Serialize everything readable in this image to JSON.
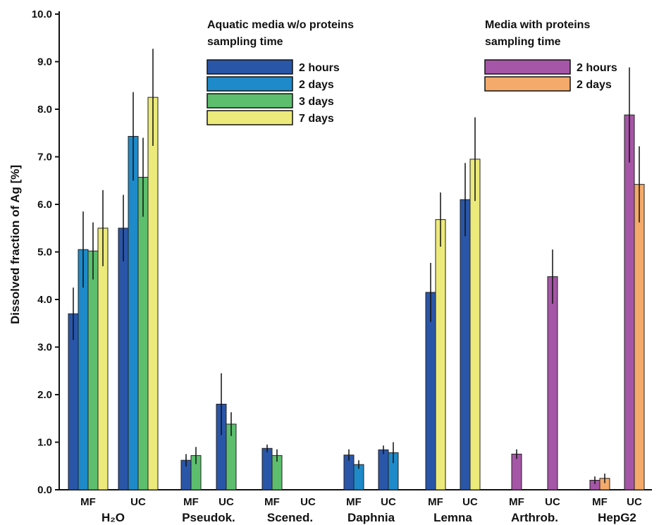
{
  "chart_data": {
    "type": "bar",
    "ylabel": "Dissolved fraction of Ag [%]",
    "ylim": [
      0,
      10
    ],
    "yticks": [
      "0.0",
      "1.0",
      "2.0",
      "3.0",
      "4.0",
      "5.0",
      "6.0",
      "7.0",
      "8.0",
      "9.0",
      "10.0"
    ],
    "colors": {
      "2 hours": "#2a56a8",
      "2 days": "#1e8ac9",
      "3 days": "#5dbf6e",
      "7 days": "#ecea7a",
      "2 hours (proteins)": "#a556a6",
      "2 days (proteins)": "#f4aa6a"
    },
    "legends": [
      {
        "title_lines": [
          "Aquatic media w/o proteins",
          "sampling time"
        ],
        "entries": [
          {
            "label": "2 hours",
            "color_key": "2 hours"
          },
          {
            "label": "2 days",
            "color_key": "2 days"
          },
          {
            "label": "3 days",
            "color_key": "3 days"
          },
          {
            "label": "7 days",
            "color_key": "7 days"
          }
        ]
      },
      {
        "title_lines": [
          "Media with proteins",
          "sampling time"
        ],
        "entries": [
          {
            "label": "2 hours",
            "color_key": "2 hours (proteins)"
          },
          {
            "label": "2 days",
            "color_key": "2 days (proteins)"
          }
        ]
      }
    ],
    "groups": [
      {
        "label": "H₂O",
        "subgroups": [
          {
            "label": "MF",
            "bars": [
              {
                "series": "2 hours",
                "value": 3.7,
                "error": 0.55
              },
              {
                "series": "2 days",
                "value": 5.05,
                "error": 0.8
              },
              {
                "series": "3 days",
                "value": 5.02,
                "error": 0.6
              },
              {
                "series": "7 days",
                "value": 5.5,
                "error": 0.8
              }
            ]
          },
          {
            "label": "UC",
            "bars": [
              {
                "series": "2 hours",
                "value": 5.5,
                "error": 0.7
              },
              {
                "series": "2 days",
                "value": 7.43,
                "error": 0.93
              },
              {
                "series": "3 days",
                "value": 6.57,
                "error": 0.83
              },
              {
                "series": "7 days",
                "value": 8.25,
                "error": 1.02
              }
            ]
          }
        ]
      },
      {
        "label": "Pseudok.",
        "subgroups": [
          {
            "label": "MF",
            "bars": [
              {
                "series": "2 hours",
                "value": 0.62,
                "error": 0.13
              },
              {
                "series": "3 days",
                "value": 0.72,
                "error": 0.18
              }
            ]
          },
          {
            "label": "UC",
            "bars": [
              {
                "series": "2 hours",
                "value": 1.8,
                "error": 0.65
              },
              {
                "series": "3 days",
                "value": 1.38,
                "error": 0.25
              }
            ]
          }
        ]
      },
      {
        "label": "Scened.",
        "subgroups": [
          {
            "label": "MF",
            "bars": [
              {
                "series": "2 hours",
                "value": 0.87,
                "error": 0.08
              },
              {
                "series": "3 days",
                "value": 0.72,
                "error": 0.13
              }
            ]
          },
          {
            "label": "UC",
            "bars": []
          }
        ]
      },
      {
        "label": "Daphnia",
        "subgroups": [
          {
            "label": "MF",
            "bars": [
              {
                "series": "2 hours",
                "value": 0.73,
                "error": 0.12
              },
              {
                "series": "2 days",
                "value": 0.53,
                "error": 0.09
              }
            ]
          },
          {
            "label": "UC",
            "bars": [
              {
                "series": "2 hours",
                "value": 0.84,
                "error": 0.09
              },
              {
                "series": "2 days",
                "value": 0.78,
                "error": 0.22
              }
            ]
          }
        ]
      },
      {
        "label": "Lemna",
        "subgroups": [
          {
            "label": "MF",
            "bars": [
              {
                "series": "2 hours",
                "value": 4.15,
                "error": 0.62
              },
              {
                "series": "7 days",
                "value": 5.68,
                "error": 0.57
              }
            ]
          },
          {
            "label": "UC",
            "bars": [
              {
                "series": "2 hours",
                "value": 6.1,
                "error": 0.77
              },
              {
                "series": "7 days",
                "value": 6.95,
                "error": 0.88
              }
            ]
          }
        ]
      },
      {
        "label": "Arthrob.",
        "subgroups": [
          {
            "label": "MF",
            "bars": [
              {
                "series": "2 hours (proteins)",
                "value": 0.75,
                "error": 0.1
              }
            ]
          },
          {
            "label": "UC",
            "bars": [
              {
                "series": "2 hours (proteins)",
                "value": 4.48,
                "error": 0.57
              }
            ]
          }
        ]
      },
      {
        "label": "HepG2",
        "subgroups": [
          {
            "label": "MF",
            "bars": [
              {
                "series": "2 hours (proteins)",
                "value": 0.2,
                "error": 0.08
              },
              {
                "series": "2 days (proteins)",
                "value": 0.24,
                "error": 0.1
              }
            ]
          },
          {
            "label": "UC",
            "bars": [
              {
                "series": "2 hours (proteins)",
                "value": 7.88,
                "error": 1.0
              },
              {
                "series": "2 days (proteins)",
                "value": 6.42,
                "error": 0.8
              }
            ]
          }
        ]
      }
    ]
  }
}
